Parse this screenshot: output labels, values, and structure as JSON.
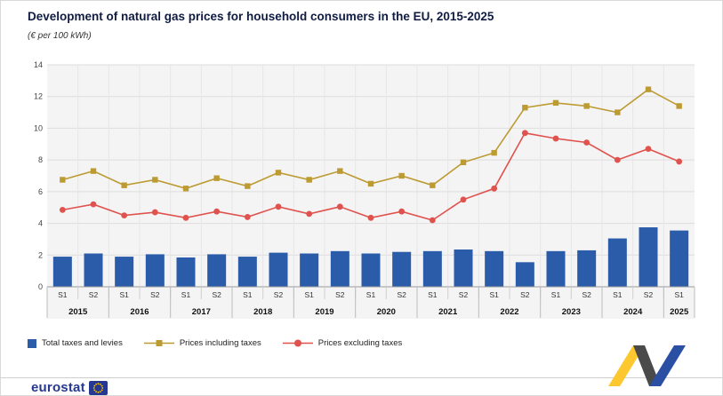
{
  "header": {
    "title": "Development of natural gas prices for household consumers in the EU, 2015-2025",
    "subtitle": "(€ per 100 kWh)",
    "title_color": "#101c42"
  },
  "chart_data": {
    "type": "bar+line",
    "x": [
      "S1",
      "S2",
      "S1",
      "S2",
      "S1",
      "S2",
      "S1",
      "S2",
      "S1",
      "S2",
      "S1",
      "S2",
      "S1",
      "S2",
      "S1",
      "S2",
      "S1",
      "S2",
      "S1",
      "S2",
      "S1"
    ],
    "year_groups": [
      {
        "label": "2015",
        "span": 2
      },
      {
        "label": "2016",
        "span": 2
      },
      {
        "label": "2017",
        "span": 2
      },
      {
        "label": "2018",
        "span": 2
      },
      {
        "label": "2019",
        "span": 2
      },
      {
        "label": "2020",
        "span": 2
      },
      {
        "label": "2021",
        "span": 2
      },
      {
        "label": "2022",
        "span": 2
      },
      {
        "label": "2023",
        "span": 2
      },
      {
        "label": "2024",
        "span": 2
      },
      {
        "label": "2025",
        "span": 1
      }
    ],
    "ylim": [
      0,
      14
    ],
    "yticks": [
      0,
      2,
      4,
      6,
      8,
      10,
      12,
      14
    ],
    "grid": true,
    "legend_position": "bottom-left",
    "series": [
      {
        "name": "Total taxes and levies",
        "type": "bar",
        "color": "#2a5caa",
        "values": [
          1.9,
          2.1,
          1.9,
          2.05,
          1.85,
          2.05,
          1.9,
          2.15,
          2.1,
          2.25,
          2.1,
          2.2,
          2.25,
          2.35,
          2.25,
          1.55,
          2.25,
          2.3,
          3.05,
          3.75,
          3.55
        ]
      },
      {
        "name": "Prices including taxes",
        "type": "line",
        "marker": "square",
        "color": "#bd9b33",
        "values": [
          6.75,
          7.3,
          6.4,
          6.75,
          6.2,
          6.85,
          6.35,
          7.2,
          6.75,
          7.3,
          6.5,
          7.0,
          6.4,
          7.85,
          8.45,
          11.3,
          11.6,
          11.4,
          11.0,
          12.45,
          11.4
        ]
      },
      {
        "name": "Prices excluding taxes",
        "type": "line",
        "marker": "circle",
        "color": "#e0524e",
        "values": [
          4.85,
          5.2,
          4.5,
          4.7,
          4.35,
          4.75,
          4.4,
          5.05,
          4.6,
          5.05,
          4.35,
          4.75,
          4.2,
          5.5,
          6.2,
          9.7,
          9.35,
          9.1,
          8.0,
          8.7,
          7.9
        ]
      }
    ],
    "colors": {
      "plot_bg": "#f4f4f4",
      "hgrid": "#dddddd",
      "vgrid": "#e6e6e6",
      "axis": "#9a9a9a",
      "separator": "#bdbdbd"
    }
  },
  "footer": {
    "brand": "eurostat",
    "brand_color": "#26388f",
    "flag_colors": {
      "blue": "#26388f",
      "stars": "#ffcc00"
    },
    "ribbon_colors": {
      "yellow": "#fdc82f",
      "dark": "#4a4a4a",
      "blue": "#2b4fa2"
    }
  }
}
